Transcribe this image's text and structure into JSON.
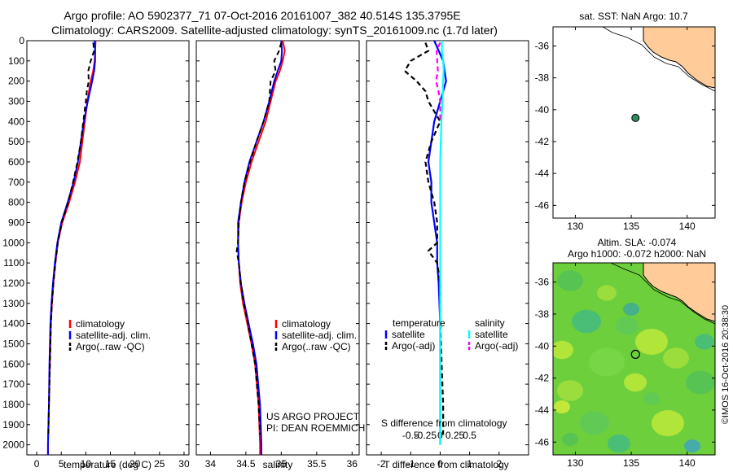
{
  "figure": {
    "title_line1": "Argo profile: AO 5902377_71 07-Oct-2016 20161007_382 40.514S 135.3795E",
    "title_line2": "Climatology: CARS2009. Satellite-adjusted climatology: synTS_20161009.nc (1.7d later)"
  },
  "colors": {
    "climatology": "#ff0000",
    "satellite": "#0000ff",
    "argo": "#000000",
    "salinity_satellite": "#00ffff",
    "salinity_argo": "#ff00ff",
    "land": "#ffcc99",
    "float_marker": "#2e8b57"
  },
  "chart_data": [
    {
      "name": "temperature-profile",
      "type": "line",
      "xlabel": "temperature (deg C)",
      "ylabel": "",
      "xlim": [
        -2,
        31
      ],
      "ylim": [
        2050,
        0
      ],
      "xticks": [
        0,
        5,
        10,
        15,
        20,
        25,
        30
      ],
      "yticks": [
        0,
        100,
        200,
        300,
        400,
        500,
        600,
        700,
        800,
        900,
        1000,
        1100,
        1200,
        1300,
        1400,
        1500,
        1600,
        1700,
        1800,
        1900,
        2000
      ],
      "legend": [
        "climatology",
        "satellite-adj. clim.",
        "Argo(..raw -QC)"
      ],
      "series": [
        {
          "name": "climatology",
          "color": "climatology",
          "dashed": false,
          "depth": [
            0,
            50,
            100,
            150,
            200,
            300,
            400,
            500,
            600,
            700,
            800,
            900,
            1000,
            1100,
            1200,
            1300,
            1400,
            1600,
            1800,
            2000,
            2050
          ],
          "values": [
            12.0,
            11.9,
            11.8,
            11.5,
            11.0,
            10.3,
            9.8,
            9.3,
            8.8,
            7.8,
            6.6,
            5.2,
            4.3,
            3.8,
            3.4,
            3.1,
            2.9,
            2.7,
            2.5,
            2.3,
            2.3
          ]
        },
        {
          "name": "satellite-adj. clim.",
          "color": "satellite",
          "dashed": false,
          "depth": [
            0,
            50,
            100,
            150,
            200,
            300,
            400,
            500,
            600,
            700,
            800,
            900,
            1000,
            1100,
            1200,
            1300,
            1400,
            1600,
            1800,
            2000,
            2050
          ],
          "values": [
            11.8,
            11.9,
            11.9,
            11.7,
            11.3,
            10.4,
            9.6,
            9.0,
            8.4,
            7.5,
            6.3,
            5.0,
            4.2,
            3.7,
            3.3,
            3.0,
            2.8,
            2.6,
            2.5,
            2.3,
            2.3
          ]
        },
        {
          "name": "Argo(..raw -QC)",
          "color": "argo",
          "dashed": true,
          "depth": [
            10,
            50,
            100,
            150,
            200,
            250,
            300,
            400,
            500,
            600,
            700,
            800,
            900,
            1000,
            1100,
            1200,
            1300,
            1400,
            1600,
            1800,
            1950
          ],
          "values": [
            11.5,
            11.7,
            11.0,
            10.5,
            10.6,
            10.2,
            10.0,
            9.5,
            9.0,
            8.3,
            7.4,
            6.4,
            5.1,
            4.3,
            3.8,
            3.4,
            3.1,
            2.9,
            2.7,
            2.5,
            2.4
          ]
        }
      ]
    },
    {
      "name": "salinity-profile",
      "type": "line",
      "xlabel": "salinity",
      "ylabel": "",
      "xlim": [
        33.8,
        36.1
      ],
      "ylim": [
        2050,
        0
      ],
      "xticks": [
        34,
        34.5,
        35,
        35.5,
        36
      ],
      "legend": [
        "climatology",
        "satellite-adj. clim.",
        "Argo(..raw -QC)"
      ],
      "annotation": [
        "US ARGO PROJECT",
        "PI: DEAN ROEMMICH"
      ],
      "series": [
        {
          "name": "climatology",
          "color": "climatology",
          "dashed": false,
          "depth": [
            0,
            50,
            100,
            150,
            200,
            300,
            400,
            500,
            600,
            700,
            800,
            900,
            1000,
            1100,
            1200,
            1300,
            1400,
            1500,
            1600,
            1800,
            2000,
            2050
          ],
          "values": [
            35.02,
            35.05,
            35.02,
            34.98,
            34.92,
            34.85,
            34.78,
            34.68,
            34.58,
            34.5,
            34.44,
            34.4,
            34.39,
            34.4,
            34.42,
            34.46,
            34.52,
            34.58,
            34.63,
            34.68,
            34.7,
            34.7
          ]
        },
        {
          "name": "satellite-adj. clim.",
          "color": "satellite",
          "dashed": false,
          "depth": [
            0,
            50,
            100,
            150,
            200,
            300,
            400,
            500,
            600,
            700,
            800,
            900,
            1000,
            1100,
            1200,
            1300,
            1400,
            1500,
            1600,
            1800,
            2000,
            2050
          ],
          "values": [
            35.0,
            35.01,
            35.0,
            34.95,
            34.9,
            34.83,
            34.75,
            34.65,
            34.55,
            34.48,
            34.43,
            34.39,
            34.39,
            34.4,
            34.43,
            34.48,
            34.54,
            34.6,
            34.65,
            34.7,
            34.72,
            34.72
          ]
        },
        {
          "name": "Argo(..raw -QC)",
          "color": "argo",
          "dashed": true,
          "depth": [
            10,
            50,
            100,
            150,
            200,
            250,
            300,
            400,
            450,
            500,
            600,
            700,
            800,
            900,
            1000,
            1040,
            1100,
            1200,
            1300,
            1400,
            1600,
            1800,
            1950
          ],
          "values": [
            35.0,
            34.97,
            34.9,
            34.92,
            34.85,
            34.84,
            34.83,
            34.75,
            34.7,
            34.65,
            34.56,
            34.48,
            34.43,
            34.4,
            34.39,
            34.37,
            34.4,
            34.43,
            34.47,
            34.53,
            34.63,
            34.68,
            34.7
          ]
        }
      ]
    },
    {
      "name": "difference-profile",
      "type": "line",
      "xlabel": "T difference from climatology",
      "top_label": "S difference from climatology",
      "xlim": [
        -2.5,
        3
      ],
      "ylim": [
        2050,
        0
      ],
      "xticks_t": [
        -2,
        -1,
        0,
        1,
        2
      ],
      "xticks_s_labels": [
        "-0.5",
        "-0.25",
        "0",
        "0.25",
        "0.5"
      ],
      "legend_temperature_title": "temperature",
      "legend_salinity_title": "salinity",
      "legend": [
        "satellite",
        "Argo(-adj)",
        "satellite",
        "Argo(-adj)"
      ],
      "series": [
        {
          "name": "satellite",
          "group": "temperature",
          "color": "satellite",
          "dashed": false,
          "depth": [
            0,
            100,
            200,
            300,
            400,
            500,
            600,
            700,
            800,
            900,
            1000,
            1100,
            1200,
            1400,
            1600,
            1800,
            2000
          ],
          "values": [
            -0.2,
            0.1,
            0.2,
            0.0,
            -0.2,
            -0.3,
            -0.4,
            -0.3,
            -0.3,
            -0.2,
            -0.1,
            -0.1,
            -0.05,
            0.0,
            0.0,
            0.0,
            0.0
          ]
        },
        {
          "name": "Argo(-adj)",
          "group": "temperature",
          "color": "argo",
          "dashed": true,
          "depth": [
            10,
            50,
            100,
            150,
            200,
            250,
            300,
            400,
            500,
            600,
            700,
            800,
            900,
            1000,
            1040,
            1100,
            1200,
            1400,
            1600,
            1800,
            1950
          ],
          "values": [
            -0.5,
            -0.4,
            -1.0,
            -1.2,
            -0.8,
            -0.5,
            -0.4,
            0.0,
            -0.3,
            -0.5,
            -0.4,
            -0.2,
            -0.1,
            -0.1,
            -0.4,
            -0.1,
            0.0,
            0.0,
            0.05,
            0.1,
            0.1
          ]
        },
        {
          "name": "satellite",
          "group": "salinity",
          "color": "salinity_satellite",
          "dashed": false,
          "depth": [
            0,
            50,
            100,
            150,
            200,
            300,
            400,
            600,
            800,
            1000,
            1200,
            1600,
            2000
          ],
          "values": [
            0.03,
            0.03,
            0.05,
            0.06,
            0.05,
            0.04,
            0.02,
            0.0,
            0.0,
            0.0,
            0.0,
            0.0,
            0.0
          ]
        },
        {
          "name": "Argo(-adj)",
          "group": "salinity",
          "color": "salinity_argo",
          "dashed": true,
          "depth": [
            10,
            50,
            100,
            150,
            200,
            250,
            300,
            400
          ],
          "values": [
            0.0,
            -0.06,
            -0.05,
            -0.04,
            -0.07,
            -0.03,
            0.0,
            0.0
          ]
        }
      ]
    },
    {
      "name": "sst-map",
      "type": "map",
      "title": "sat. SST: NaN Argo: 10.7",
      "xticks": [
        130,
        135,
        140
      ],
      "yticks": [
        -36,
        -38,
        -40,
        -42,
        -44,
        -46
      ],
      "xlim": [
        128,
        142.5
      ],
      "ylim": [
        -46.8,
        -34.8
      ],
      "float_position": {
        "lon": 135.3795,
        "lat": -40.514
      }
    },
    {
      "name": "sla-map",
      "type": "heatmap",
      "title_line1": "Altim. SLA: -0.074",
      "title_line2": "Argo h1000: -0.072 h2000: NaN",
      "xticks": [
        130,
        135,
        140
      ],
      "yticks": [
        -36,
        -38,
        -40,
        -42,
        -44,
        -46
      ],
      "xlim": [
        128,
        142.5
      ],
      "ylim": [
        -46.8,
        -34.8
      ],
      "float_position": {
        "lon": 135.3795,
        "lat": -40.514
      },
      "side_label": "©IMOS 16-Oct-2016 20:38:30"
    }
  ]
}
